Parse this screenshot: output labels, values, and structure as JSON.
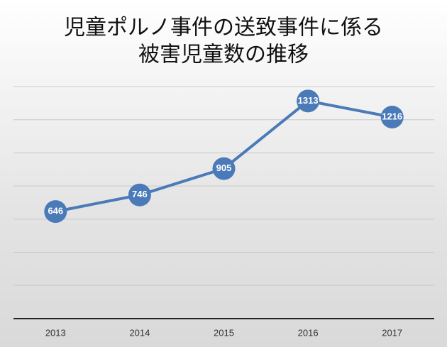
{
  "chart_data": {
    "type": "line",
    "title": [
      "児童ポルノ事件の送致事件に係る",
      "被害児童数の推移"
    ],
    "categories": [
      "2013",
      "2014",
      "2015",
      "2016",
      "2017"
    ],
    "values": [
      646,
      746,
      905,
      1313,
      1216
    ],
    "color": "#4a7ab8",
    "ylim": [
      0,
      1400
    ],
    "yticks": [
      0,
      200,
      400,
      600,
      800,
      1000,
      1200,
      1400
    ],
    "grid": true
  }
}
